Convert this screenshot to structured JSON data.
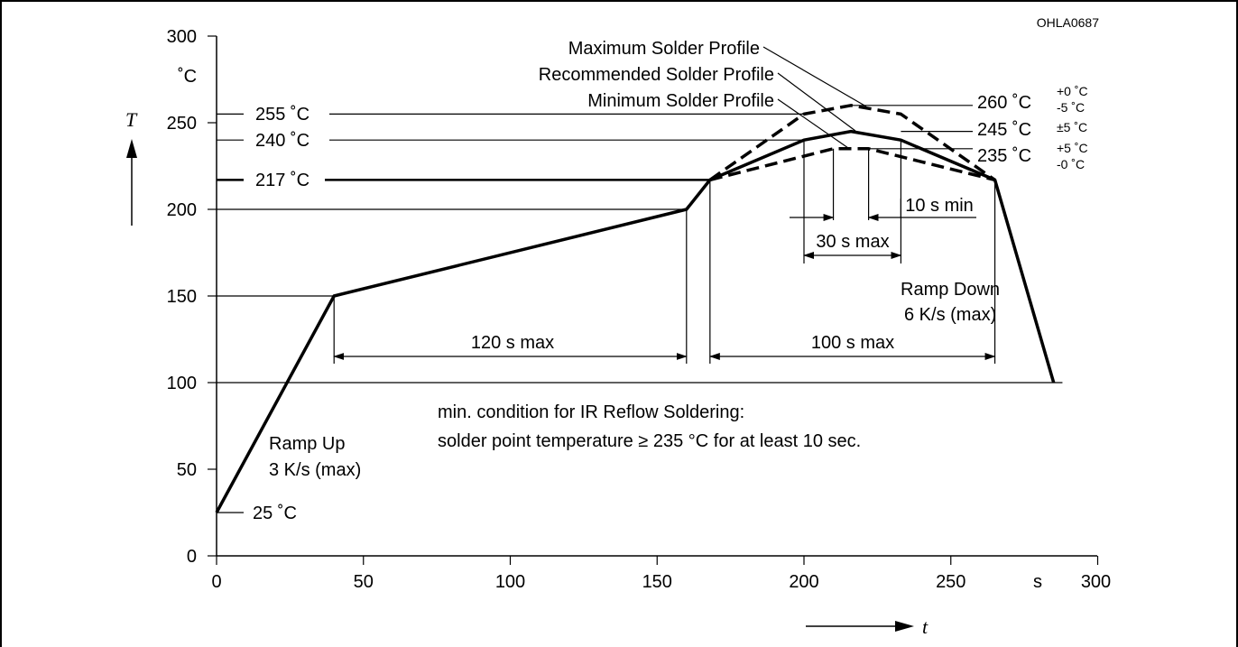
{
  "chart_data": {
    "type": "line",
    "code": "OHLA0687",
    "x_axis": {
      "ticks": [
        0,
        50,
        100,
        150,
        200,
        250,
        300
      ],
      "unit": "s",
      "symbol": "t",
      "range": [
        0,
        300
      ]
    },
    "y_axis": {
      "ticks": [
        0,
        50,
        100,
        150,
        200,
        250,
        300
      ],
      "unit": "˚C",
      "symbol": "T",
      "range": [
        0,
        300
      ]
    },
    "series": [
      {
        "name": "Recommended Solder Profile",
        "style": "solid",
        "points": [
          [
            0,
            25
          ],
          [
            40,
            150
          ],
          [
            160,
            200
          ],
          [
            168,
            217
          ],
          [
            200,
            240
          ],
          [
            216,
            245
          ],
          [
            233,
            240
          ],
          [
            265,
            217
          ],
          [
            285,
            100
          ]
        ]
      },
      {
        "name": "Maximum Solder Profile",
        "style": "dashed",
        "points": [
          [
            168,
            217
          ],
          [
            200,
            255
          ],
          [
            216,
            260
          ],
          [
            233,
            255
          ],
          [
            265,
            217
          ]
        ]
      },
      {
        "name": "Minimum Solder Profile",
        "style": "dashed",
        "points": [
          [
            168,
            217
          ],
          [
            210,
            235
          ],
          [
            222,
            235
          ],
          [
            265,
            217
          ]
        ]
      }
    ],
    "reference_lines": {
      "t_25": "25 ˚C",
      "t_217": "217 ˚C",
      "t_240": "240 ˚C",
      "t_255": "255 ˚C"
    },
    "peak_labels": {
      "max": {
        "value": "260 ˚C",
        "sup": "+0 ˚C",
        "sub": "-5 ˚C"
      },
      "rec": {
        "value": "245 ˚C",
        "sup": "±5 ˚C"
      },
      "min": {
        "value": "235 ˚C",
        "sup": "+5 ˚C",
        "sub": "-0 ˚C"
      }
    },
    "durations": {
      "preheat": "120 s max",
      "above_liquidus": "100 s max",
      "peak_window": "30 s max",
      "min_time": "10 s min"
    },
    "annotations": {
      "ramp_up_1": "Ramp Up",
      "ramp_up_2": "3 K/s (max)",
      "ramp_down_1": "Ramp Down",
      "ramp_down_2": "6 K/s (max)",
      "condition_1": "min. condition for IR Reflow Soldering:",
      "condition_2": "solder point temperature ≥ 235 °C for at least 10 sec."
    }
  }
}
